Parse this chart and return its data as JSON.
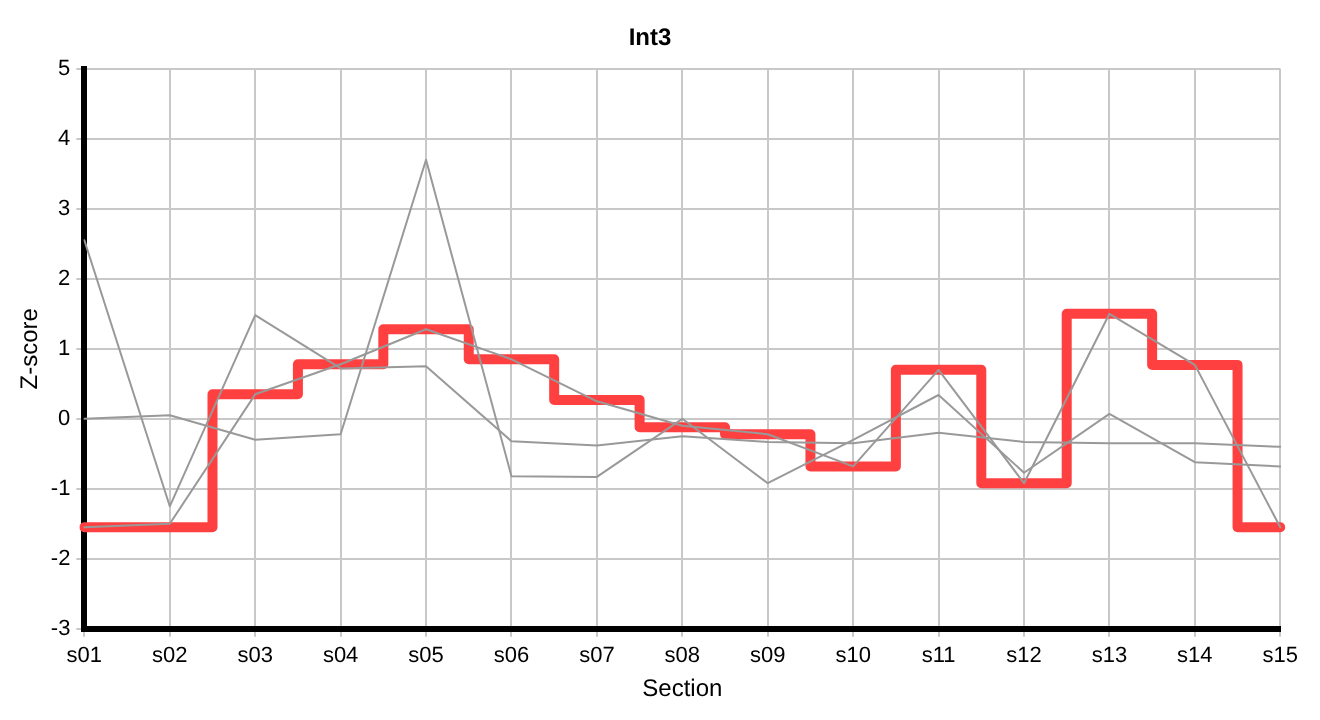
{
  "chart_data": {
    "type": "line",
    "title": "Int3",
    "xlabel": "Section",
    "ylabel": "Z-score",
    "categories": [
      "s01",
      "s02",
      "s03",
      "s04",
      "s05",
      "s06",
      "s07",
      "s08",
      "s09",
      "s10",
      "s11",
      "s12",
      "s13",
      "s14",
      "s15"
    ],
    "series": [
      {
        "color": "#999999",
        "values": [
          2.55,
          -1.25,
          1.48,
          0.72,
          0.75,
          -0.32,
          -0.38,
          -0.25,
          -0.33,
          -0.35,
          -0.2,
          -0.33,
          -0.35,
          -0.35,
          -0.4
        ]
      },
      {
        "color": "#999999",
        "values": [
          0.0,
          0.05,
          -0.3,
          -0.22,
          3.7,
          -0.82,
          -0.83,
          0.0,
          -0.92,
          -0.3,
          0.34,
          -0.77,
          0.07,
          -0.62,
          -0.68
        ]
      },
      {
        "color": "#999999",
        "values": [
          -1.55,
          -1.5,
          0.35,
          0.78,
          1.28,
          0.85,
          0.25,
          -0.1,
          -0.22,
          -0.68,
          0.7,
          -0.92,
          1.5,
          0.77,
          -1.55
        ]
      },
      {
        "type": "step",
        "color": "#ff4040",
        "values": [
          -1.55,
          -1.55,
          0.35,
          0.78,
          1.28,
          0.85,
          0.27,
          -0.12,
          -0.22,
          -0.68,
          0.7,
          -0.92,
          1.5,
          0.77,
          -1.55
        ]
      }
    ],
    "ylim": [
      -3,
      5
    ],
    "yticks": [
      -3,
      -2,
      -1,
      0,
      1,
      2,
      3,
      4,
      5
    ],
    "grid": true,
    "legend": false,
    "marker": "none",
    "line_style": "solid"
  }
}
